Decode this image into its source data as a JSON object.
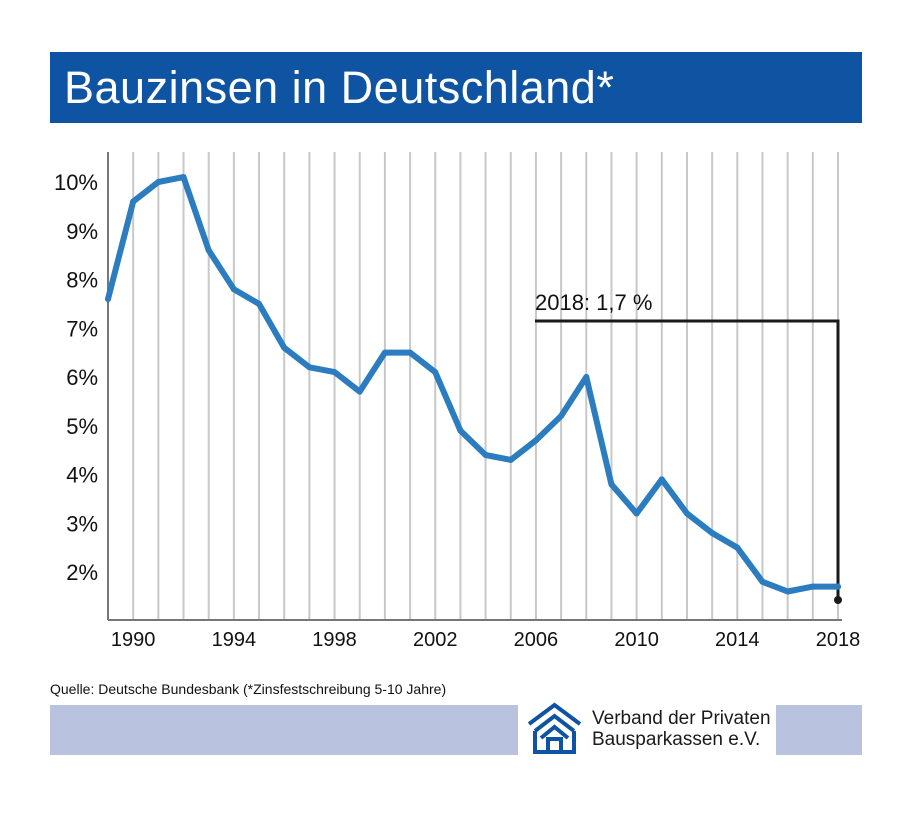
{
  "header": {
    "title": "Bauzinsen in Deutschland*"
  },
  "colors": {
    "title_bar": "#0f54a2",
    "line": "#2c7cc0",
    "band": "#b9c3e0",
    "grid": "#c8c8c8"
  },
  "chart_data": {
    "type": "line",
    "title": "Bauzinsen in Deutschland*",
    "xlabel": "",
    "ylabel": "",
    "x": [
      1989,
      1990,
      1991,
      1992,
      1993,
      1994,
      1995,
      1996,
      1997,
      1998,
      1999,
      2000,
      2001,
      2002,
      2003,
      2004,
      2005,
      2006,
      2007,
      2008,
      2009,
      2010,
      2011,
      2012,
      2013,
      2014,
      2015,
      2016,
      2017,
      2018
    ],
    "series": [
      {
        "values": [
          7.6,
          9.6,
          10.0,
          10.1,
          8.6,
          7.8,
          7.5,
          6.6,
          6.2,
          6.1,
          5.7,
          6.5,
          6.5,
          6.1,
          4.9,
          4.4,
          4.3,
          4.7,
          5.2,
          6.0,
          3.8,
          3.2,
          3.9,
          3.2,
          2.8,
          2.5,
          1.8,
          1.6,
          1.7,
          1.7
        ]
      }
    ],
    "x_ticks": [
      "1990",
      "1994",
      "1998",
      "2002",
      "2006",
      "2010",
      "2014",
      "2018"
    ],
    "y_ticks": [
      "2%",
      "3%",
      "4%",
      "5%",
      "6%",
      "7%",
      "8%",
      "9%",
      "10%"
    ],
    "xlim": [
      1989,
      2018
    ],
    "ylim": [
      1.0,
      10.5
    ],
    "grid": "vertical",
    "annotation": {
      "text": "2018: 1,7 %",
      "x": 2018,
      "y": 1.7
    }
  },
  "footer": {
    "source": "Quelle: Deutsche Bundesbank (*Zinsfestschreibung 5-10 Jahre)",
    "logo_line1": "Verband der Privaten",
    "logo_line2": "Bausparkassen e.V.",
    "logo_icon": "house-roofs-logo"
  }
}
